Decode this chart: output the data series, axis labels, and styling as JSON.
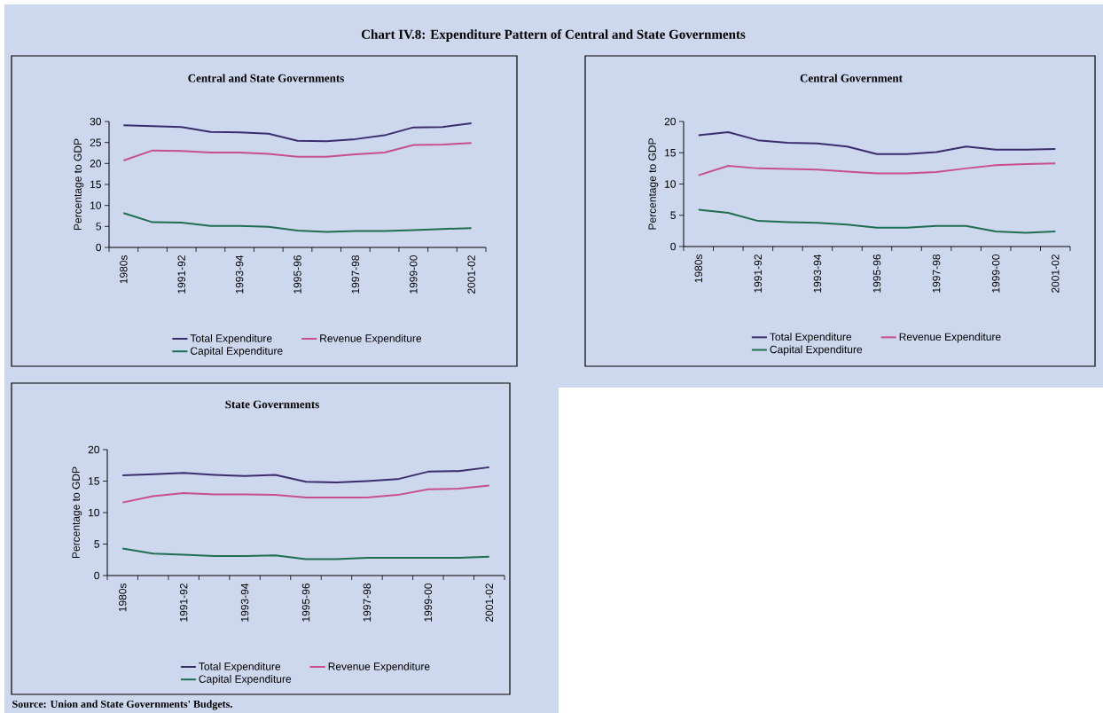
{
  "chart_data": [
    {
      "type": "other",
      "title": "Chart IV.8: Expenditure Pattern of Central and State Governments",
      "annotations": [
        "Source: Union and State Governments' Budgets."
      ]
    },
    {
      "type": "line",
      "title": "Central and State Governments",
      "ylabel": "Percentage to GDP",
      "legend": "bottom",
      "ylim": [
        0,
        30
      ],
      "yticks": [
        0,
        5,
        10,
        15,
        20,
        25,
        30
      ],
      "categories": [
        "1980s",
        null,
        "1991-92",
        null,
        "1993-94",
        null,
        "1995-96",
        null,
        "1997-98",
        null,
        "1999-00",
        null,
        "2001-02"
      ],
      "series": [
        {
          "name": "Total Expenditure",
          "color": "#3a2d6e",
          "values": [
            29.1,
            28.9,
            28.7,
            27.5,
            27.4,
            27.1,
            25.4,
            25.3,
            25.8,
            26.7,
            28.6,
            28.7,
            29.6
          ]
        },
        {
          "name": "Revenue Expenditure",
          "color": "#c8508f",
          "values": [
            20.7,
            23.1,
            23.0,
            22.6,
            22.6,
            22.3,
            21.6,
            21.6,
            22.2,
            22.6,
            24.4,
            24.5,
            24.9
          ]
        },
        {
          "name": "Capital Expenditure",
          "color": "#1f6e50",
          "values": [
            8.2,
            6.0,
            5.9,
            5.1,
            5.1,
            4.9,
            4.0,
            3.7,
            3.9,
            3.9,
            4.1,
            4.4,
            4.6
          ]
        }
      ]
    },
    {
      "type": "line",
      "title": "Central Government",
      "ylabel": "Percentage to GDP",
      "legend": "bottom",
      "ylim": [
        0,
        20
      ],
      "yticks": [
        0,
        5,
        10,
        15,
        20
      ],
      "categories": [
        "1980s",
        null,
        "1991-92",
        null,
        "1993-94",
        null,
        "1995-96",
        null,
        "1997-98",
        null,
        "1999-00",
        null,
        "2001-02"
      ],
      "series": [
        {
          "name": "Total Expenditure",
          "color": "#3a2d6e",
          "values": [
            17.8,
            18.3,
            17.0,
            16.6,
            16.5,
            16.0,
            14.8,
            14.8,
            15.1,
            16.0,
            15.5,
            15.5,
            15.6
          ]
        },
        {
          "name": "Revenue Expenditure",
          "color": "#c8508f",
          "values": [
            11.4,
            12.9,
            12.5,
            12.4,
            12.3,
            12.0,
            11.7,
            11.7,
            11.9,
            12.5,
            13.0,
            13.2,
            13.3
          ]
        },
        {
          "name": "Capital Expenditure",
          "color": "#1f6e50",
          "values": [
            5.9,
            5.4,
            4.1,
            3.9,
            3.8,
            3.5,
            3.0,
            3.0,
            3.3,
            3.3,
            2.4,
            2.2,
            2.4
          ]
        }
      ]
    },
    {
      "type": "line",
      "title": "State Governments",
      "ylabel": "Percentage to GDP",
      "legend": "bottom",
      "ylim": [
        0,
        20
      ],
      "yticks": [
        0,
        5,
        10,
        15,
        20
      ],
      "categories": [
        "1980s",
        null,
        "1991-92",
        null,
        "1993-94",
        null,
        "1995-96",
        null,
        "1997-98",
        null,
        "1999-00",
        null,
        "2001-02"
      ],
      "series": [
        {
          "name": "Total Expenditure",
          "color": "#3a2d6e",
          "values": [
            15.9,
            16.1,
            16.3,
            16.0,
            15.8,
            16.0,
            14.9,
            14.8,
            15.0,
            15.3,
            16.5,
            16.6,
            17.2
          ]
        },
        {
          "name": "Revenue Expenditure",
          "color": "#c8508f",
          "values": [
            11.6,
            12.6,
            13.1,
            12.9,
            12.9,
            12.8,
            12.4,
            12.4,
            12.4,
            12.8,
            13.7,
            13.8,
            14.3
          ]
        },
        {
          "name": "Capital Expenditure",
          "color": "#1f6e50",
          "values": [
            4.3,
            3.5,
            3.3,
            3.1,
            3.1,
            3.2,
            2.6,
            2.6,
            2.8,
            2.8,
            2.8,
            2.8,
            3.0
          ]
        }
      ]
    }
  ]
}
